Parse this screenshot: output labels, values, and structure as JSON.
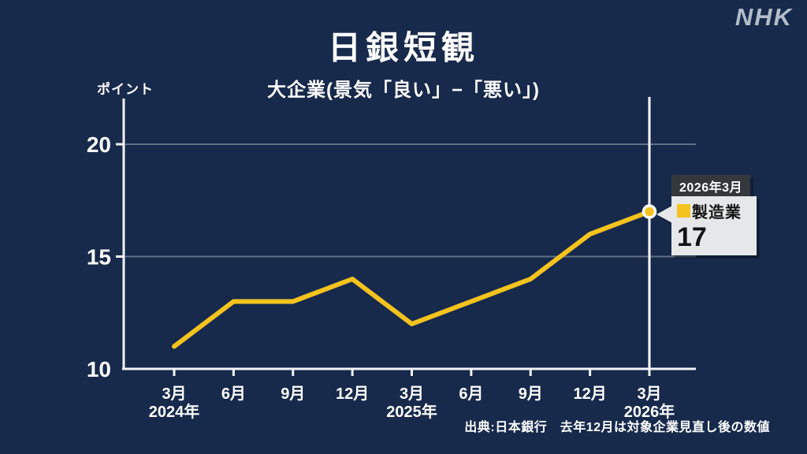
{
  "logo": "NHK",
  "source_note": "出典:日本銀行　去年12月は対象企業見直し後の数値",
  "callout": {
    "date": "2026年3月",
    "value": "17"
  },
  "colors": {
    "background": "#172a4c",
    "axis": "#f2f4f6",
    "grid": "rgba(255,255,255,0.32)",
    "line": "#f5c31d",
    "text": "#ffffff",
    "highlight_line": "#ffffff",
    "callout_header_bg": "#34383d",
    "callout_body_bg": "#e6e7e8",
    "logo": "#b3bdc9"
  },
  "chart_data": {
    "type": "line",
    "title": "日銀短観",
    "subtitle": "大企業(景気「良い」−「悪い」)",
    "ylabel": "ポイント",
    "categories": [
      "3月",
      "6月",
      "9月",
      "12月",
      "3月",
      "6月",
      "9月",
      "12月",
      "3月"
    ],
    "year_labels": [
      {
        "index": 0,
        "label": "2024年"
      },
      {
        "index": 4,
        "label": "2025年"
      },
      {
        "index": 8,
        "label": "2026年"
      }
    ],
    "series": [
      {
        "name": "製造業",
        "color": "#f5c31d",
        "values": [
          11,
          13,
          13,
          14,
          12,
          13,
          14,
          16,
          17
        ]
      }
    ],
    "ylim": [
      10,
      22
    ],
    "yticks": [
      10,
      15,
      20
    ],
    "grid": "horizontal",
    "legend_position": "callout-right",
    "highlight": {
      "index": 8,
      "label": "2026年3月",
      "value": 17
    }
  }
}
